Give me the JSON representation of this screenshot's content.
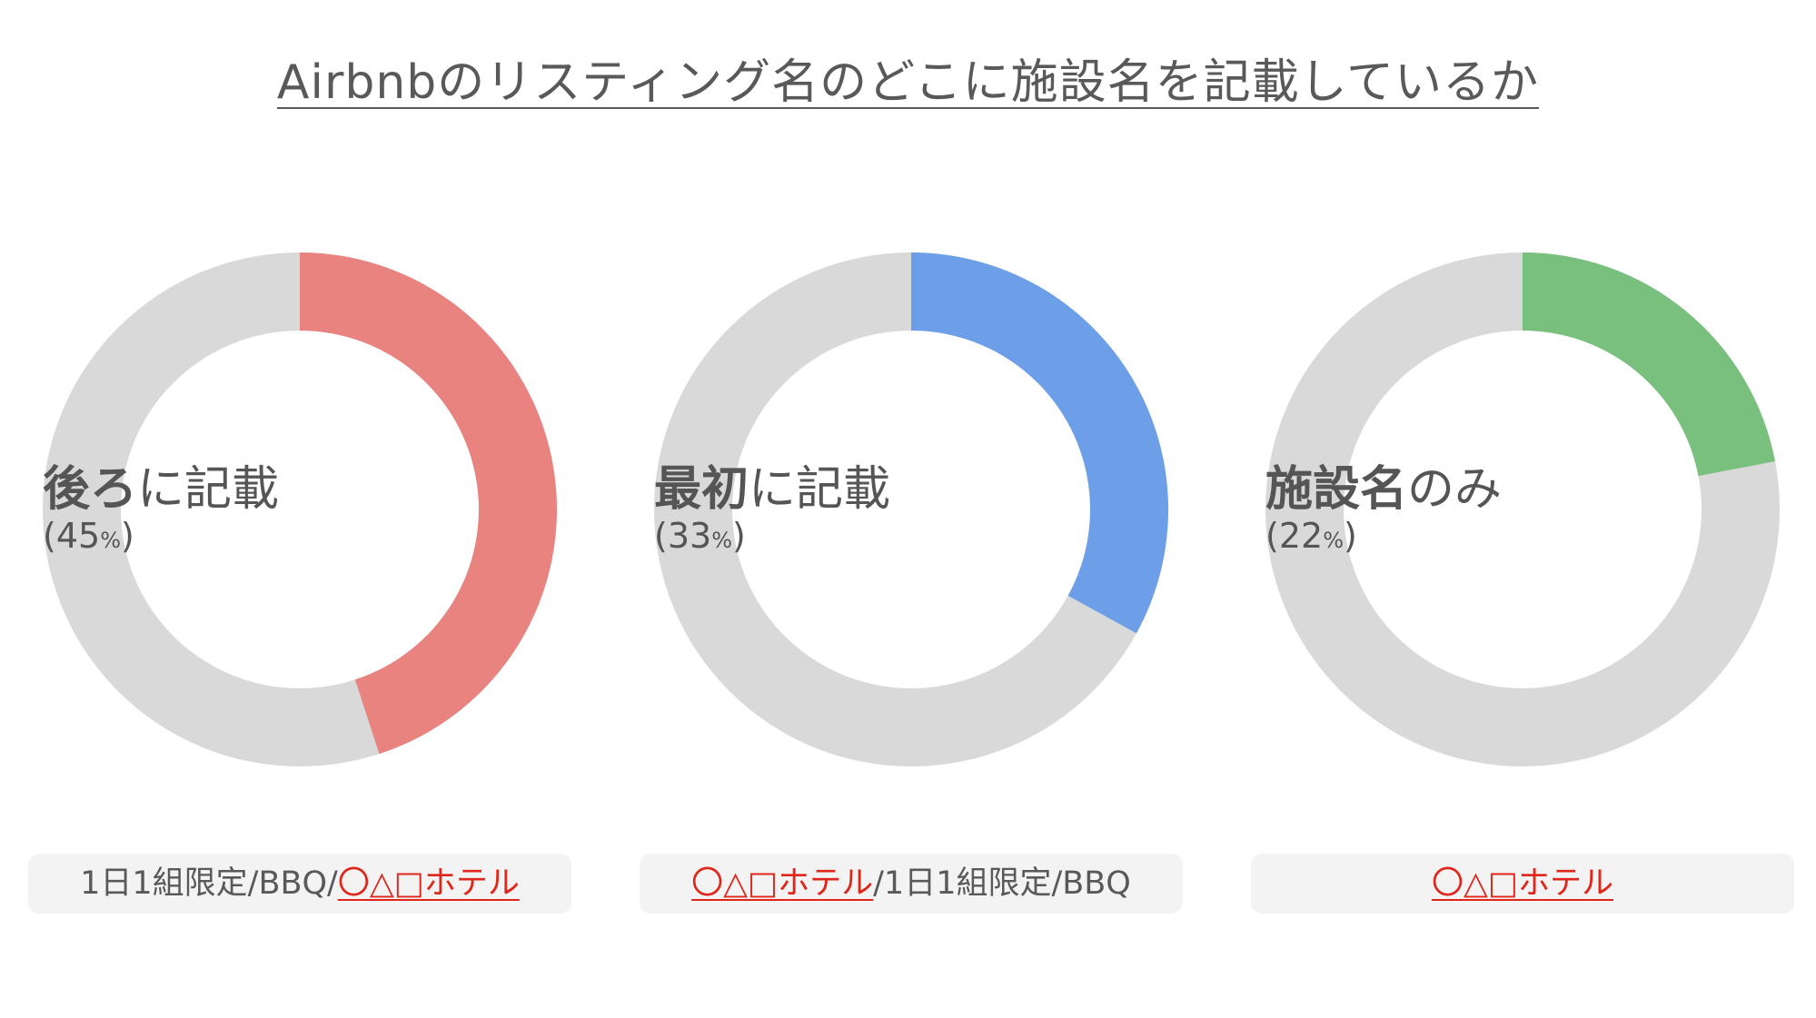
{
  "title": "Airbnbのリスティング名のどこに施設名を記載しているか",
  "chart_data": [
    {
      "type": "pie",
      "categories": [
        "後ろに記載"
      ],
      "values": [
        45
      ],
      "color": "#e88380",
      "remainder_color": "#d9d9d9",
      "label_bold": "後ろ",
      "label_rest": "に記載",
      "pct_open": "(",
      "pct_value": "45",
      "pct_sym": "%",
      "pct_close": ")"
    },
    {
      "type": "pie",
      "categories": [
        "最初に記載"
      ],
      "values": [
        33
      ],
      "color": "#6c9fe8",
      "remainder_color": "#d9d9d9",
      "label_bold": "最初",
      "label_rest": "に記載",
      "pct_open": "(",
      "pct_value": "33",
      "pct_sym": "%",
      "pct_close": ")"
    },
    {
      "type": "pie",
      "categories": [
        "施設名のみ"
      ],
      "values": [
        22
      ],
      "color": "#79c07e",
      "remainder_color": "#d9d9d9",
      "label_bold": "施設名",
      "label_rest": "のみ",
      "pct_open": "(",
      "pct_value": "22",
      "pct_sym": "%",
      "pct_close": ")"
    }
  ],
  "examples": [
    {
      "prefix": "1日1組限定/BBQ/",
      "hotel": "〇△□ホテル",
      "suffix": ""
    },
    {
      "prefix": "",
      "hotel": "〇△□ホテル",
      "suffix": "/1日1組限定/BBQ"
    },
    {
      "prefix": "",
      "hotel": "〇△□ホテル",
      "suffix": ""
    }
  ]
}
